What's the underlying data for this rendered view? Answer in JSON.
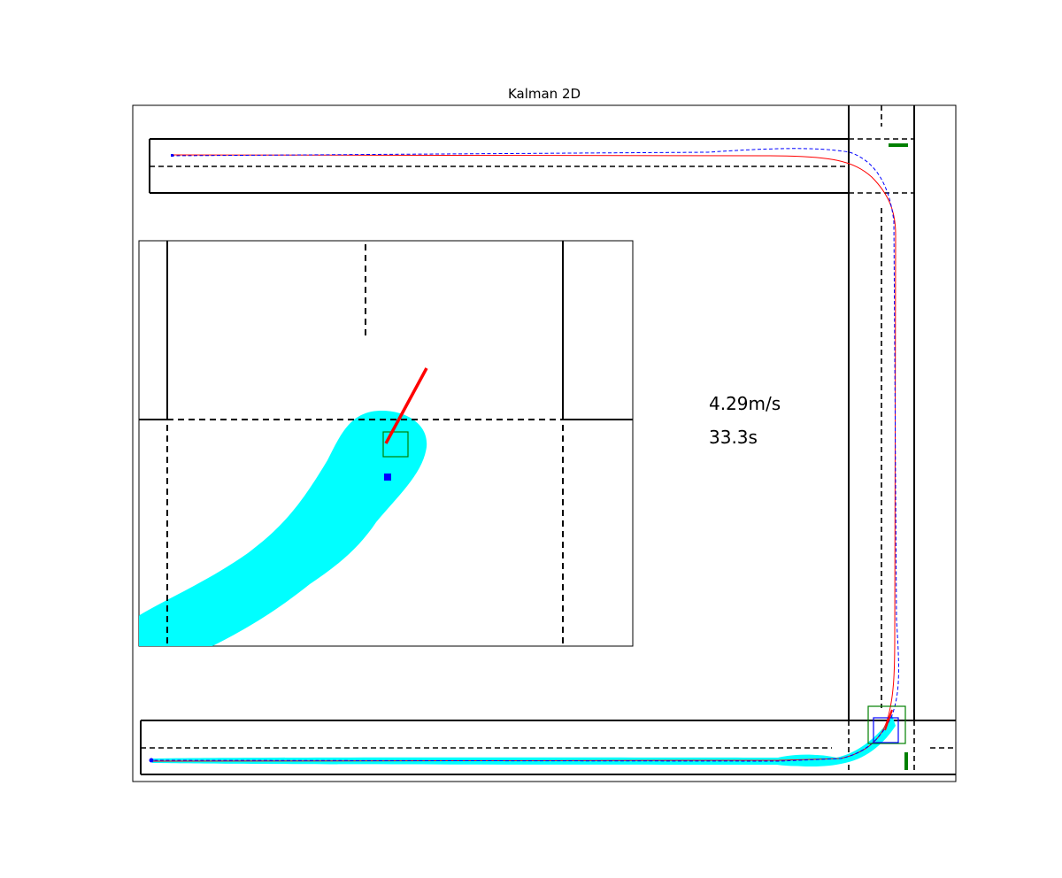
{
  "chart_data": {
    "type": "line",
    "title": "Kalman 2D",
    "xlabel": "",
    "ylabel": "",
    "grid": false,
    "legend": "none",
    "readouts": {
      "speed": "4.29m/s",
      "time": "33.3s"
    },
    "colors": {
      "true_path": "#ff0000",
      "estimate_path": "#0000ff",
      "uncertainty": "#00ffff",
      "vehicle_box": "#008000",
      "estimate_box": "#0000ff",
      "heading": "#ff0000",
      "signal": "#008000",
      "road_edge": "#000000",
      "lane_marking": "#000000"
    },
    "icons": {
      "inset": "zoomed-vehicle-inset",
      "signal": "traffic-signal-bar"
    }
  }
}
